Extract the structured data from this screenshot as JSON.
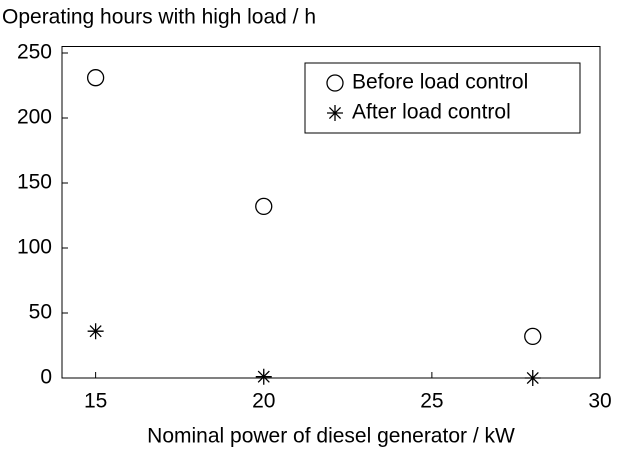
{
  "chart_data": {
    "type": "scatter",
    "title": "Operating hours with high load / h",
    "x_label": "Nominal power of diesel generator / kW",
    "series": [
      {
        "name": "Before load control",
        "marker": "circle",
        "color": "#000000",
        "x": [
          15,
          20,
          28
        ],
        "values": [
          231,
          132,
          32
        ]
      },
      {
        "name": "After load control",
        "marker": "asterisk",
        "color": "#000000",
        "x": [
          15,
          20,
          28
        ],
        "values": [
          36,
          1,
          0
        ]
      }
    ],
    "xlim": [
      14,
      30
    ],
    "xticks": [
      15,
      20,
      25,
      30
    ],
    "ylim": [
      0,
      255
    ],
    "yticks": [
      0,
      50,
      100,
      150,
      200,
      250
    ],
    "grid": false,
    "legend": "upper right"
  }
}
